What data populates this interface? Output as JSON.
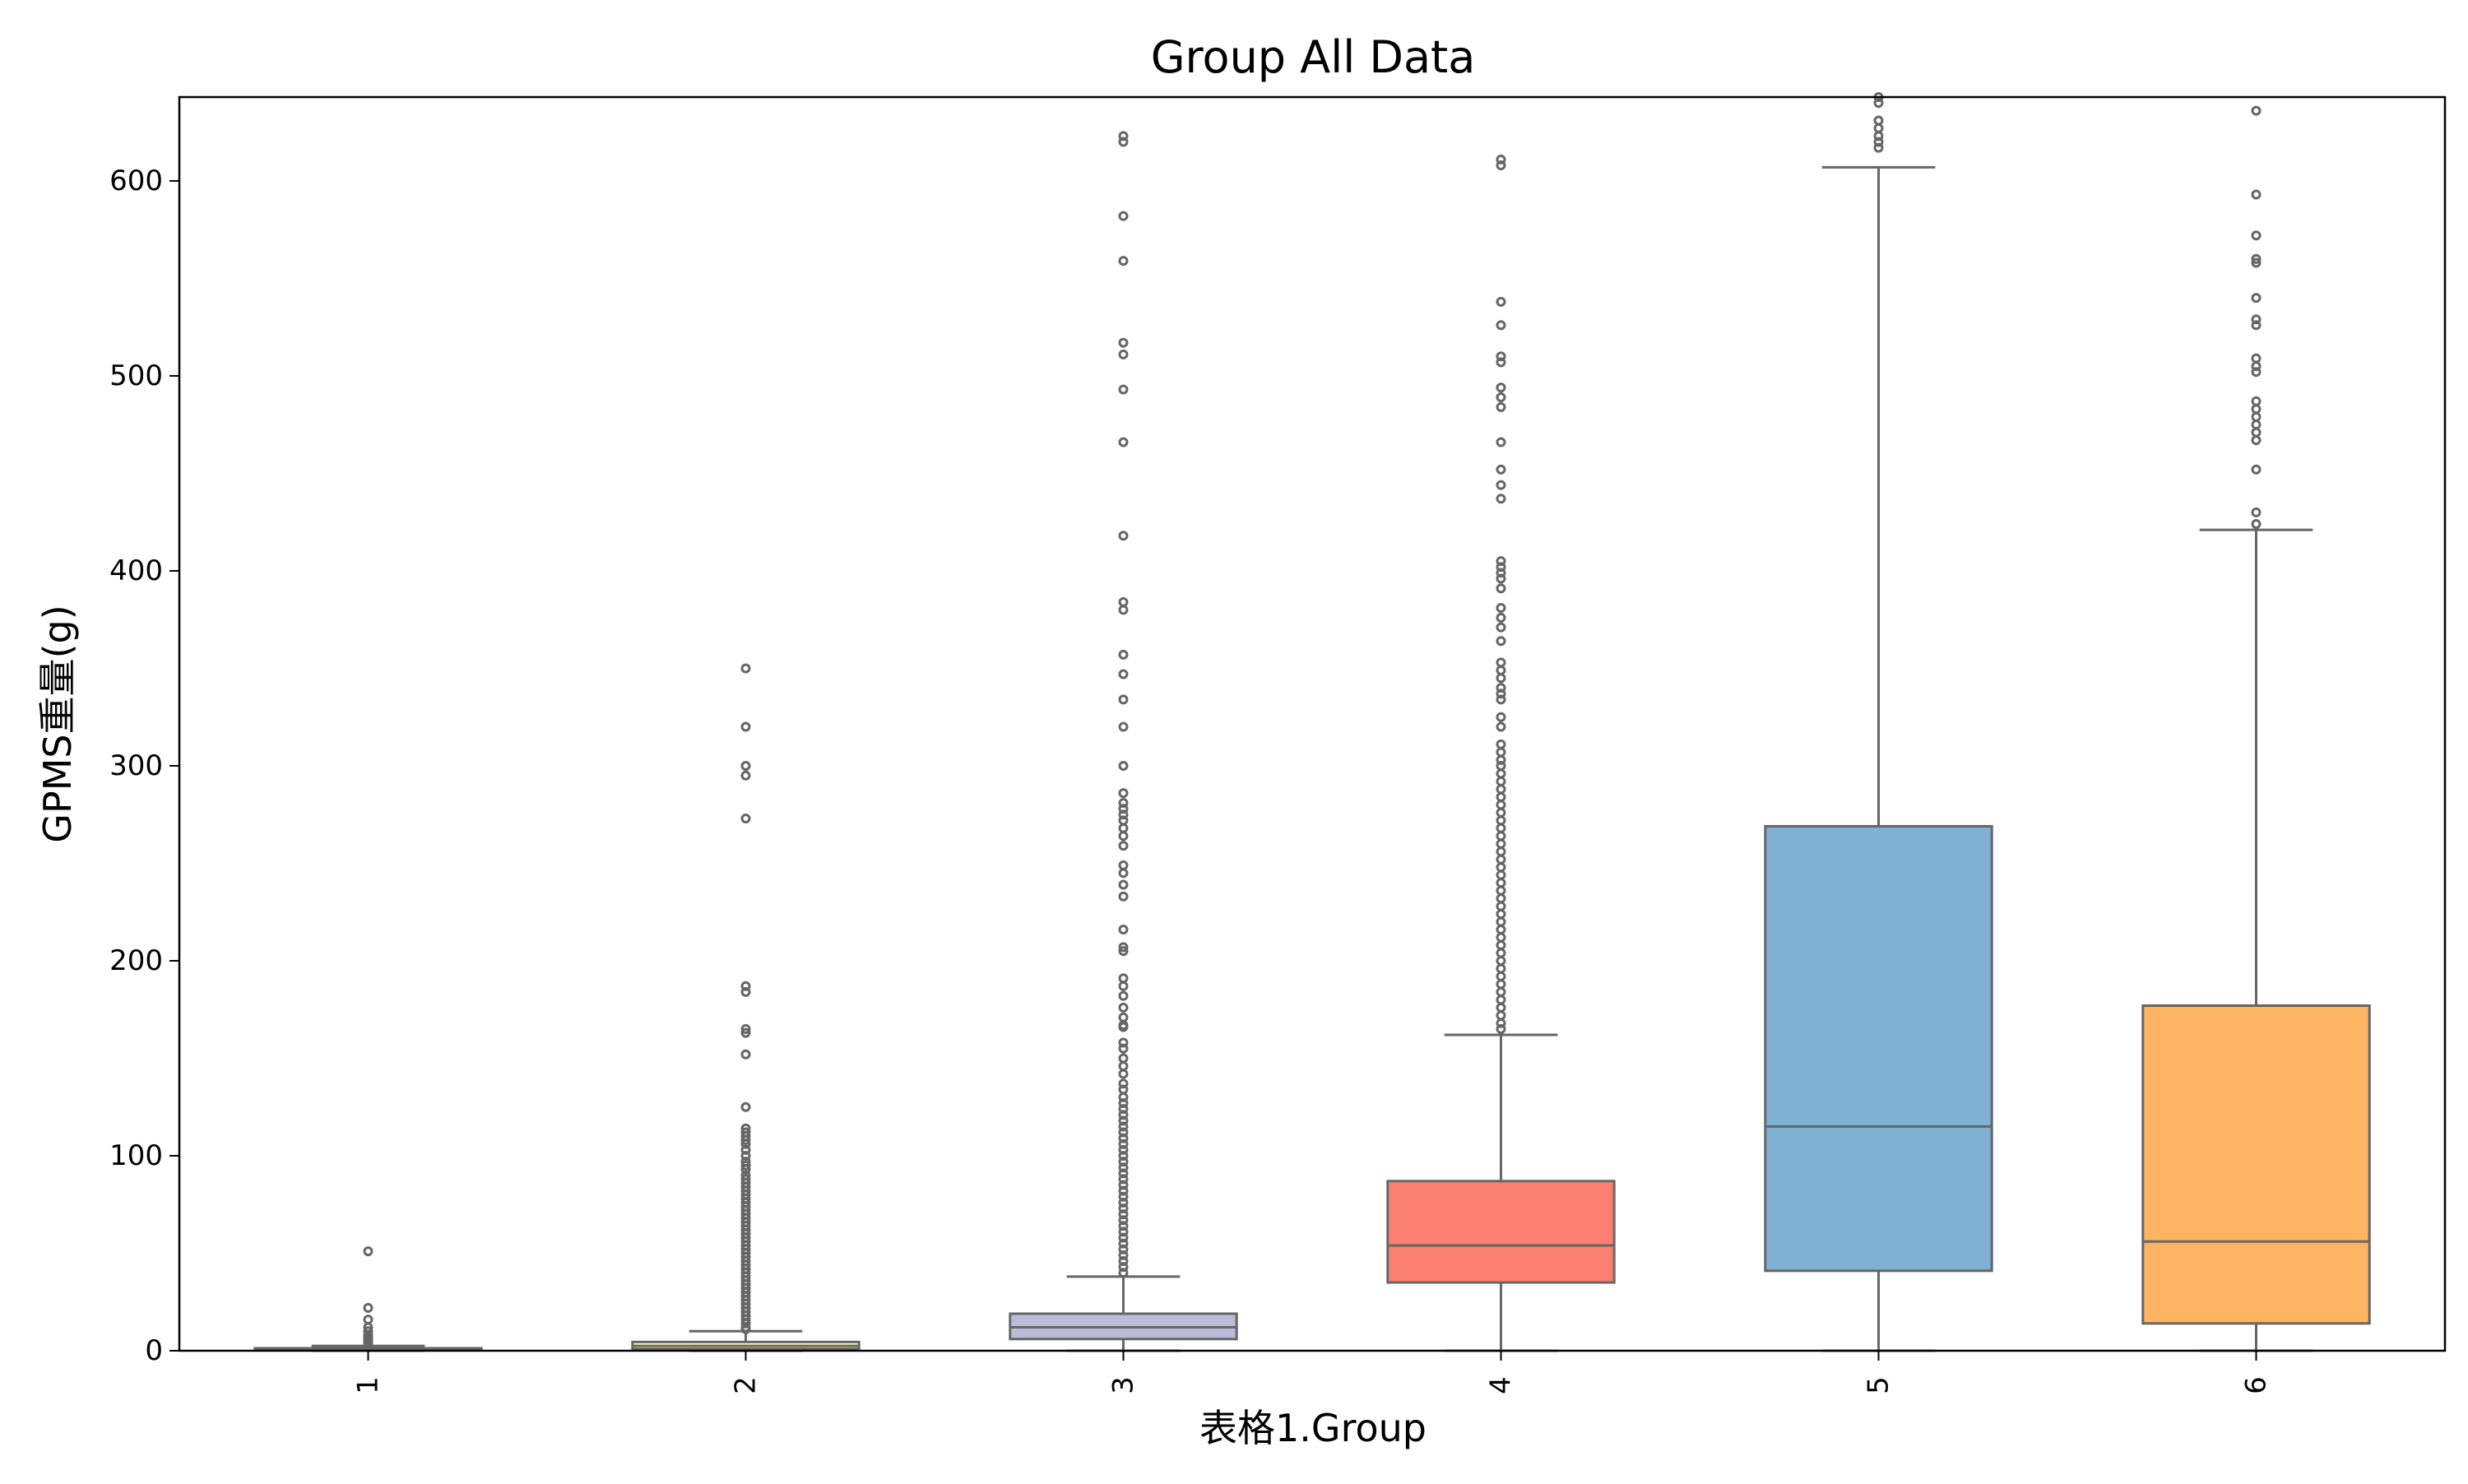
{
  "chart_data": {
    "type": "box",
    "title": "Group All Data",
    "xlabel": "表格1.Group",
    "ylabel": "GPMS重量(g)",
    "ylim": [
      0,
      643
    ],
    "yticks": [
      0,
      100,
      200,
      300,
      400,
      500,
      600
    ],
    "ytick_labels": [
      "0",
      "100",
      "200",
      "300",
      "400",
      "500",
      "600"
    ],
    "grid": false,
    "categories": [
      "1",
      "2",
      "3",
      "4",
      "5",
      "6"
    ],
    "boxes": [
      {
        "category": "1",
        "whisker_low": 0,
        "q1": 0.3,
        "median": 0.7,
        "q3": 1.3,
        "whisker_high": 2.5,
        "color": "#8dd3c7",
        "outliers": [
          51,
          22,
          16,
          12,
          10,
          8,
          7,
          6,
          5,
          4.5,
          4,
          3.5,
          3
        ]
      },
      {
        "category": "2",
        "whisker_low": 0,
        "q1": 1,
        "median": 2.5,
        "q3": 4.5,
        "whisker_high": 10,
        "color": "#ffffb3",
        "outliers": [
          350,
          320,
          300,
          295,
          273,
          187,
          184,
          165,
          163,
          152,
          125,
          114,
          112,
          110,
          108,
          106,
          103,
          100,
          97,
          95,
          93,
          90,
          88,
          86,
          84,
          82,
          80,
          78,
          76,
          74,
          72,
          70,
          68,
          66,
          64,
          62,
          60,
          58,
          56,
          54,
          52,
          50,
          48,
          46,
          44,
          42,
          40,
          38,
          36,
          34,
          32,
          30,
          28,
          26,
          24,
          22,
          20,
          18,
          16,
          14,
          12,
          11
        ]
      },
      {
        "category": "3",
        "whisker_low": 0,
        "q1": 6,
        "median": 12,
        "q3": 19,
        "whisker_high": 38,
        "color": "#bebada",
        "outliers": [
          623,
          620,
          582,
          559,
          517,
          511,
          493,
          466,
          418,
          384,
          380,
          357,
          347,
          334,
          320,
          300,
          286,
          281,
          278,
          275,
          272,
          268,
          264,
          259,
          249,
          245,
          239,
          233,
          216,
          207,
          205,
          191,
          187,
          182,
          176,
          171,
          167,
          166,
          158,
          155,
          150,
          146,
          142,
          137,
          134,
          130,
          127,
          124,
          121,
          118,
          115,
          112,
          109,
          106,
          103,
          100,
          97,
          94,
          91,
          88,
          85,
          82,
          79,
          76,
          73,
          70,
          67,
          64,
          61,
          58,
          55,
          52,
          49,
          46,
          43,
          40
        ]
      },
      {
        "category": "4",
        "whisker_low": 0,
        "q1": 35,
        "median": 54,
        "q3": 87,
        "whisker_high": 162,
        "color": "#fb8072",
        "outliers": [
          611,
          608,
          538,
          526,
          510,
          507,
          494,
          489,
          484,
          466,
          452,
          444,
          437,
          405,
          402,
          399,
          396,
          391,
          381,
          376,
          371,
          364,
          353,
          349,
          345,
          340,
          337,
          334,
          325,
          320,
          311,
          307,
          303,
          300,
          296,
          292,
          288,
          284,
          280,
          276,
          272,
          268,
          264,
          260,
          256,
          252,
          248,
          244,
          240,
          236,
          232,
          228,
          224,
          220,
          216,
          212,
          208,
          204,
          200,
          196,
          192,
          188,
          184,
          180,
          176,
          172,
          168,
          165
        ]
      },
      {
        "category": "5",
        "whisker_low": 0,
        "q1": 41,
        "median": 115,
        "q3": 269,
        "whisker_high": 607,
        "color": "#80b1d3",
        "outliers": [
          643,
          640,
          631,
          627,
          623,
          620,
          617
        ]
      },
      {
        "category": "6",
        "whisker_low": 0,
        "q1": 14,
        "median": 56,
        "q3": 177,
        "whisker_high": 421,
        "color": "#fdb462",
        "outliers": [
          636,
          593,
          572,
          560,
          558,
          540,
          529,
          526,
          509,
          505,
          502,
          487,
          483,
          479,
          475,
          471,
          467,
          452,
          430,
          424
        ]
      }
    ]
  }
}
